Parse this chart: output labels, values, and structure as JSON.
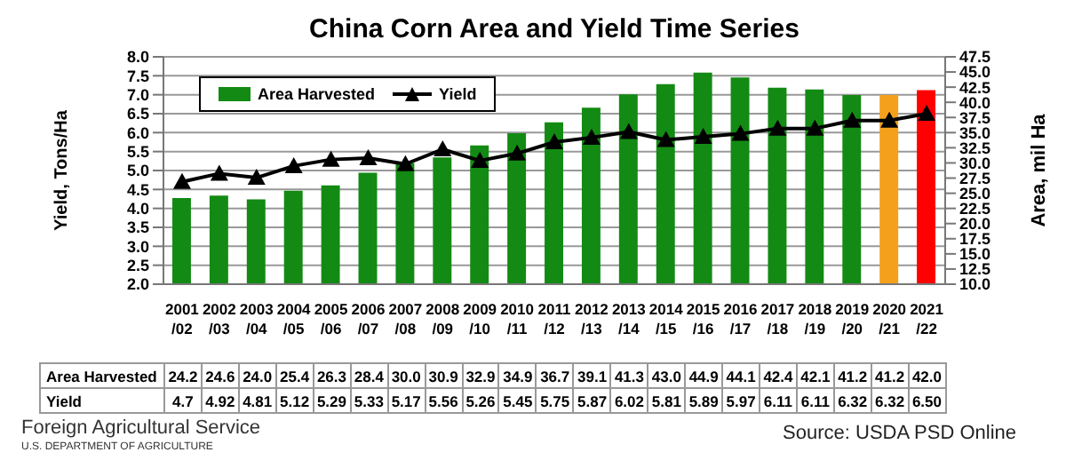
{
  "chart_data": {
    "type": "bar",
    "title": "China Corn Area and Yield Time Series",
    "ylabel": "Yield, Tons/Ha",
    "y2label": "Area, mil Ha",
    "categories": [
      "2001/02",
      "2002/03",
      "2003/04",
      "2004/05",
      "2005/06",
      "2006/07",
      "2007/08",
      "2008/09",
      "2009/10",
      "2010/11",
      "2011/12",
      "2012/13",
      "2013/14",
      "2014/15",
      "2015/16",
      "2016/17",
      "2017/18",
      "2018/19",
      "2019/20",
      "2020/21",
      "2021/22"
    ],
    "series": [
      {
        "name": "Area Harvested",
        "axis": "y2",
        "color": "#138a13",
        "colors": [
          "#138a13",
          "#138a13",
          "#138a13",
          "#138a13",
          "#138a13",
          "#138a13",
          "#138a13",
          "#138a13",
          "#138a13",
          "#138a13",
          "#138a13",
          "#138a13",
          "#138a13",
          "#138a13",
          "#138a13",
          "#138a13",
          "#138a13",
          "#138a13",
          "#138a13",
          "#f5a01a",
          "#ff0000"
        ],
        "values": [
          24.2,
          24.6,
          24.0,
          25.4,
          26.3,
          28.4,
          30.0,
          30.9,
          32.9,
          34.9,
          36.7,
          39.1,
          41.3,
          43.0,
          44.9,
          44.1,
          42.4,
          42.1,
          41.2,
          41.2,
          42.0
        ],
        "value_labels": [
          "24.2",
          "24.6",
          "24.0",
          "25.4",
          "26.3",
          "28.4",
          "30.0",
          "30.9",
          "32.9",
          "34.9",
          "36.7",
          "39.1",
          "41.3",
          "43.0",
          "44.9",
          "44.1",
          "42.4",
          "42.1",
          "41.2",
          "41.2",
          "42.0"
        ]
      },
      {
        "name": "Yield",
        "type": "line",
        "color": "#000000",
        "marker": "triangle",
        "values": [
          4.7,
          4.92,
          4.81,
          5.12,
          5.29,
          5.33,
          5.17,
          5.56,
          5.26,
          5.45,
          5.75,
          5.87,
          6.02,
          5.81,
          5.89,
          5.97,
          6.11,
          6.11,
          6.32,
          6.32,
          6.5
        ],
        "value_labels": [
          "4.7",
          "4.92",
          "4.81",
          "5.12",
          "5.29",
          "5.33",
          "5.17",
          "5.56",
          "5.26",
          "5.45",
          "5.75",
          "5.87",
          "6.02",
          "5.81",
          "5.89",
          "5.97",
          "6.11",
          "6.11",
          "6.32",
          "6.32",
          "6.50"
        ]
      }
    ],
    "ylim": [
      2,
      8
    ],
    "yticks": [
      {
        "value": 2,
        "label": "2.0"
      },
      {
        "value": 2.5,
        "label": "2.5"
      },
      {
        "value": 3,
        "label": "3.0"
      },
      {
        "value": 3.5,
        "label": "3.5"
      },
      {
        "value": 4,
        "label": "4.0"
      },
      {
        "value": 4.5,
        "label": "4.5"
      },
      {
        "value": 5,
        "label": "5.0"
      },
      {
        "value": 5.5,
        "label": "5.5"
      },
      {
        "value": 6,
        "label": "6.0"
      },
      {
        "value": 6.5,
        "label": "6.5"
      },
      {
        "value": 7,
        "label": "7.0"
      },
      {
        "value": 7.5,
        "label": "7.5"
      },
      {
        "value": 8,
        "label": "8.0"
      }
    ],
    "y2lim": [
      10,
      47.5
    ],
    "y2ticks": [
      {
        "value": 10,
        "label": "10.0"
      },
      {
        "value": 12.5,
        "label": "12.5"
      },
      {
        "value": 15,
        "label": "15.0"
      },
      {
        "value": 17.5,
        "label": "17.5"
      },
      {
        "value": 20,
        "label": "20.0"
      },
      {
        "value": 22.5,
        "label": "22.5"
      },
      {
        "value": 25,
        "label": "25.0"
      },
      {
        "value": 27.5,
        "label": "27.5"
      },
      {
        "value": 30,
        "label": "30.0"
      },
      {
        "value": 32.5,
        "label": "32.5"
      },
      {
        "value": 35,
        "label": "35.0"
      },
      {
        "value": 37.5,
        "label": "37.5"
      },
      {
        "value": 40,
        "label": "40.0"
      },
      {
        "value": 42.5,
        "label": "42.5"
      },
      {
        "value": 45,
        "label": "45.0"
      },
      {
        "value": 47.5,
        "label": "47.5"
      }
    ],
    "grid": "y",
    "legend": "top left",
    "line_style": "solid",
    "annotations": [
      "Foreign Agricultural Service",
      "U.S. DEPARTMENT OF AGRICULTURE",
      "Source: USDA PSD Online"
    ]
  }
}
